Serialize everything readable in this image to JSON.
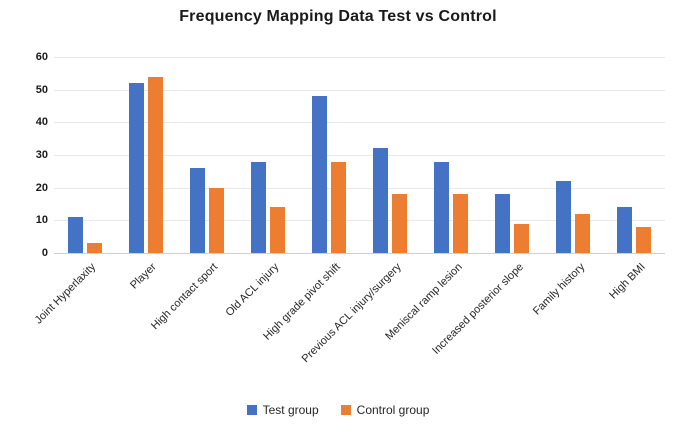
{
  "chart_data": {
    "type": "bar",
    "title": "Frequency Mapping Data Test vs Control",
    "categories": [
      "Joint Hyperlaxity",
      "Player",
      "High contact sport",
      "Old ACL injury",
      "High grade pivot shift",
      "Previous ACL injury/surgery",
      "Meniscal ramp lesion",
      "Increased posterior slope",
      "Family history",
      "High BMI"
    ],
    "series": [
      {
        "name": "Test group",
        "color": "#4472C4",
        "values": [
          11,
          52,
          26,
          28,
          48,
          32,
          28,
          18,
          22,
          14
        ]
      },
      {
        "name": "Control group",
        "color": "#ED7D31",
        "values": [
          3,
          54,
          20,
          14,
          28,
          18,
          18,
          9,
          12,
          8
        ]
      }
    ],
    "xlabel": "",
    "ylabel": "",
    "ylim": [
      0,
      60
    ],
    "yticks": [
      0,
      10,
      20,
      30,
      40,
      50,
      60
    ],
    "grid": true,
    "legend_position": "bottom"
  }
}
